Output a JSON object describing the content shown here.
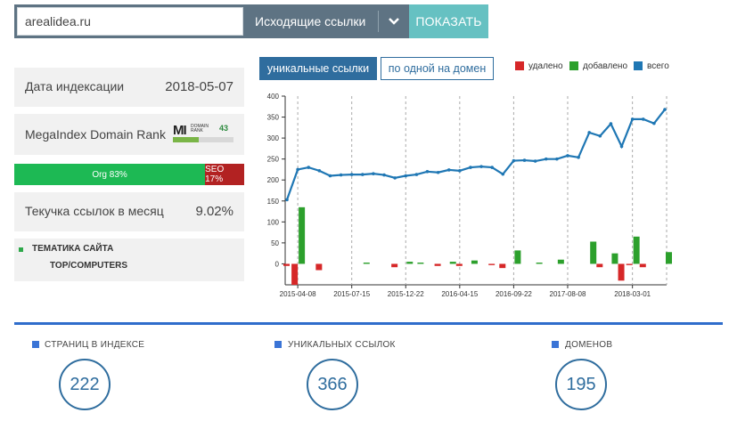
{
  "search": {
    "domain_value": "arealidea.ru",
    "mode_label": "Исходящие ссылки",
    "show_button": "ПОКАЗАТЬ"
  },
  "info": {
    "index_date_label": "Дата индексации",
    "index_date_value": "2018-05-07",
    "rank_label": "MegaIndex Domain Rank",
    "rank_logo_letters": "MI",
    "rank_logo_caption_1": "DOMAIN",
    "rank_logo_caption_2": "RANK",
    "rank_score": "43",
    "rank_fraction": 0.43,
    "org_label": "Org 83%",
    "org_fraction": 0.83,
    "seo_label": "SEO 17%",
    "churn_label": "Текучка ссылок в месяц",
    "churn_value": "9.02%",
    "topic_heading": "ТЕМАТИКА САЙТА",
    "topic_value": "TOP/COMPUTERS"
  },
  "chart_tabs": {
    "active": "уникальные ссылки",
    "inactive": "по одной на домен"
  },
  "legend": {
    "removed": "удалено",
    "added": "добавлено",
    "total": "всего"
  },
  "colors": {
    "removed": "#d62728",
    "added": "#2ca02c",
    "total": "#1f77b4",
    "accent": "#2f6d9e",
    "button": "#66c1c2",
    "topbar": "#5e7383"
  },
  "chart_data": {
    "type": "line",
    "ylim": [
      -50,
      400
    ],
    "yticks": [
      400,
      350,
      300,
      250,
      200,
      150,
      100,
      50,
      0
    ],
    "x_ticks": [
      "2015-04-08",
      "2015-07-15",
      "2015-12-22",
      "2016-04-15",
      "2016-09-22",
      "2017-08-08",
      "2018-03-01"
    ],
    "series": [
      {
        "name": "всего",
        "values": [
          153,
          225,
          230,
          222,
          210,
          212,
          213,
          213,
          215,
          212,
          205,
          210,
          213,
          220,
          218,
          224,
          222,
          230,
          232,
          230,
          214,
          246,
          247,
          245,
          250,
          250,
          258,
          254,
          313,
          305,
          334,
          280,
          345,
          345,
          335,
          368
        ]
      }
    ],
    "bars": {
      "removed": [
        5,
        50,
        0,
        15,
        0,
        0,
        0,
        0,
        0,
        0,
        8,
        0,
        0,
        0,
        5,
        0,
        5,
        0,
        0,
        3,
        10,
        0,
        0,
        0,
        0,
        0,
        0,
        0,
        0,
        8,
        0,
        40,
        3,
        8,
        0,
        0
      ],
      "added": [
        0,
        135,
        0,
        0,
        0,
        0,
        0,
        3,
        0,
        0,
        0,
        5,
        3,
        0,
        0,
        5,
        0,
        8,
        0,
        0,
        0,
        32,
        0,
        3,
        0,
        10,
        0,
        0,
        53,
        0,
        25,
        0,
        65,
        0,
        0,
        28
      ]
    }
  },
  "stats": [
    {
      "label": "СТРАНИЦ В ИНДЕКСЕ",
      "value": "222"
    },
    {
      "label": "УНИКАЛЬНЫХ ССЫЛОК",
      "value": "366"
    },
    {
      "label": "ДОМЕНОВ",
      "value": "195"
    }
  ]
}
